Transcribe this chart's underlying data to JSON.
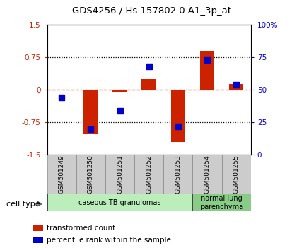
{
  "title": "GDS4256 / Hs.157802.0.A1_3p_at",
  "samples": [
    "GSM501249",
    "GSM501250",
    "GSM501251",
    "GSM501252",
    "GSM501253",
    "GSM501254",
    "GSM501255"
  ],
  "transformed_counts": [
    0.0,
    -1.02,
    -0.04,
    0.25,
    -1.2,
    0.9,
    0.13
  ],
  "percentile_ranks": [
    44,
    20,
    34,
    68,
    22,
    73,
    54
  ],
  "ylim": [
    -1.5,
    1.5
  ],
  "ylim_right": [
    0,
    100
  ],
  "left_ticks": [
    -1.5,
    -0.75,
    0,
    0.75,
    1.5
  ],
  "left_tick_labels": [
    "-1.5",
    "-0.75",
    "0",
    "0.75",
    "1.5"
  ],
  "right_ticks": [
    0,
    25,
    50,
    75,
    100
  ],
  "right_tick_labels": [
    "0",
    "25",
    "50",
    "75",
    "100%"
  ],
  "bar_color": "#cc2200",
  "dot_color": "#0000cc",
  "dashed_color": "#cc2200",
  "dotted_color": "#000000",
  "cell_type_groups": [
    {
      "label": "caseous TB granulomas",
      "start": 0,
      "end": 5,
      "color": "#bbeebb"
    },
    {
      "label": "normal lung\nparenchyma",
      "start": 5,
      "end": 7,
      "color": "#88cc88"
    }
  ],
  "cell_type_label": "cell type",
  "legend_items": [
    {
      "color": "#cc2200",
      "label": "transformed count"
    },
    {
      "color": "#0000cc",
      "label": "percentile rank within the sample"
    }
  ],
  "tick_label_color_left": "#cc2200",
  "tick_label_color_right": "#0000cc",
  "bar_width": 0.5,
  "dot_size": 28
}
